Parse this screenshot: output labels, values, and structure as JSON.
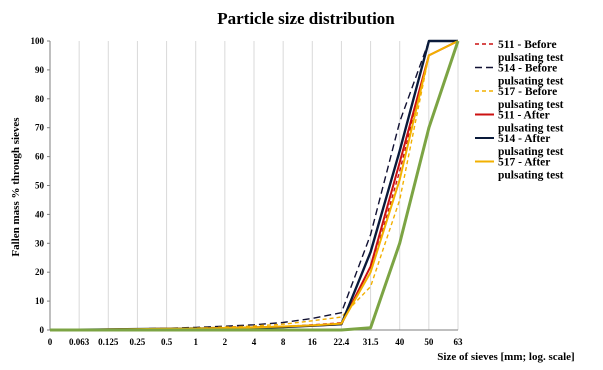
{
  "chart_data": {
    "type": "line",
    "title": "Particle size distribution",
    "xlabel": "Size of sieves [mm; log. scale]",
    "ylabel": "Fallen mass % through sieves",
    "categories": [
      "0",
      "0.063",
      "0.125",
      "0.25",
      "0.5",
      "1",
      "2",
      "4",
      "8",
      "16",
      "22.4",
      "31.5",
      "40",
      "50",
      "63"
    ],
    "yticks": [
      "0",
      "10",
      "20",
      "30",
      "40",
      "50",
      "60",
      "70",
      "80",
      "90",
      "100"
    ],
    "ylim": [
      0,
      100
    ],
    "grid": "vertical",
    "legend_position": "right",
    "series": [
      {
        "label_line1": "511 - Before",
        "label_line2": "pulsating test",
        "color": "#cc1111",
        "dash": "4,3",
        "width": 1.4,
        "values": [
          0,
          0.1,
          0.2,
          0.3,
          0.4,
          0.6,
          0.8,
          1,
          1.2,
          1.8,
          2.5,
          20,
          55,
          95,
          100
        ]
      },
      {
        "label_line1": "514 - Before",
        "label_line2": "pulsating test",
        "color": "#111133",
        "dash": "7,4",
        "width": 1.4,
        "values": [
          0,
          0.1,
          0.2,
          0.4,
          0.6,
          0.9,
          1.3,
          1.8,
          2.6,
          4,
          6,
          33,
          72,
          100,
          100
        ]
      },
      {
        "label_line1": "517 - Before",
        "label_line2": "pulsating test",
        "color": "#f2b000",
        "dash": "4,3",
        "width": 1.4,
        "values": [
          0,
          0.1,
          0.2,
          0.3,
          0.5,
          0.7,
          1,
          1.4,
          2,
          3.2,
          4.5,
          15,
          45,
          95,
          100
        ]
      },
      {
        "label_line1": "511 - After",
        "label_line2": "pulsating test",
        "color": "#cc1111",
        "dash": "",
        "width": 2,
        "values": [
          0,
          0.1,
          0.2,
          0.3,
          0.4,
          0.5,
          0.7,
          0.9,
          1.1,
          1.5,
          2,
          22,
          58,
          95,
          100
        ]
      },
      {
        "label_line1": "514 - After",
        "label_line2": "pulsating test",
        "color": "#0a1a3a",
        "dash": "",
        "width": 2.4,
        "values": [
          0,
          0.1,
          0.2,
          0.3,
          0.4,
          0.5,
          0.6,
          0.8,
          1,
          1.5,
          2,
          27,
          62,
          100,
          100
        ]
      },
      {
        "label_line1": "517 - After",
        "label_line2": "pulsating test",
        "color": "#f2b000",
        "dash": "",
        "width": 2,
        "values": [
          0,
          0.1,
          0.2,
          0.3,
          0.4,
          0.5,
          0.7,
          0.9,
          1.2,
          1.6,
          2.2,
          20,
          52,
          95,
          100
        ]
      },
      {
        "label_line1": "",
        "label_line2": "",
        "color": "#7ca444",
        "dash": "",
        "width": 3,
        "values": [
          0,
          0,
          0,
          0,
          0,
          0,
          0,
          0,
          0,
          0,
          0,
          0.8,
          30,
          70,
          100
        ]
      }
    ]
  }
}
